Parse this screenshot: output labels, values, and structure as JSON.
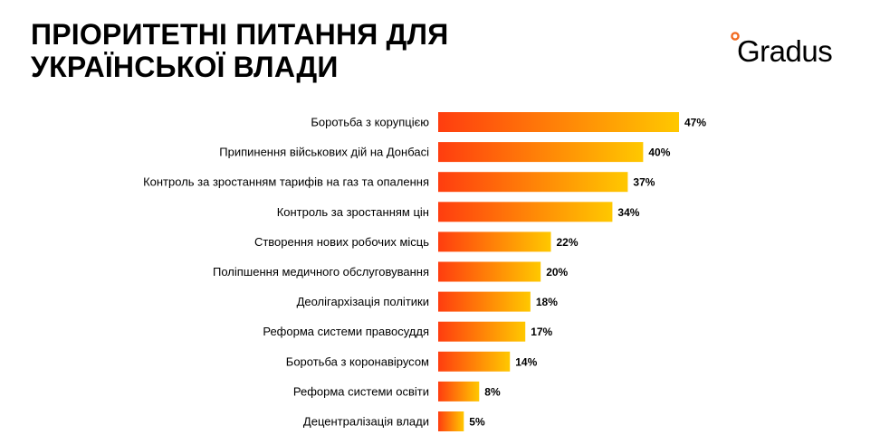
{
  "page": {
    "title_line1": "ПРІОРИТЕТНІ ПИТАННЯ ДЛЯ",
    "title_line2": "УКРАЇНСЬКОЇ ВЛАДИ"
  },
  "logo": {
    "text": "Gradus",
    "accent_color": "#f26b21",
    "text_color": "#000000"
  },
  "chart_data": {
    "type": "bar",
    "orientation": "horizontal",
    "categories": [
      "Боротьба з корупцією",
      "Припинення військових дій на Донбасі",
      "Контроль за зростанням тарифів на газ та опалення",
      "Контроль за зростанням цін",
      "Створення нових робочих місць",
      "Поліпшення медичного обслуговування",
      "Деолігархізація політики",
      "Реформа системи правосуддя",
      "Боротьба з коронавірусом",
      "Реформа системи освіти",
      "Децентралізація влади"
    ],
    "values": [
      47,
      40,
      37,
      34,
      22,
      20,
      18,
      17,
      14,
      8,
      5
    ],
    "value_labels": [
      "47%",
      "40%",
      "37%",
      "34%",
      "22%",
      "20%",
      "18%",
      "17%",
      "14%",
      "8%",
      "5%"
    ],
    "unit": "%",
    "xlim": [
      0,
      47
    ],
    "grid": false,
    "legend": "none",
    "bar_gradient": {
      "start": "#ff3d0f",
      "end": "#ffc800"
    }
  }
}
